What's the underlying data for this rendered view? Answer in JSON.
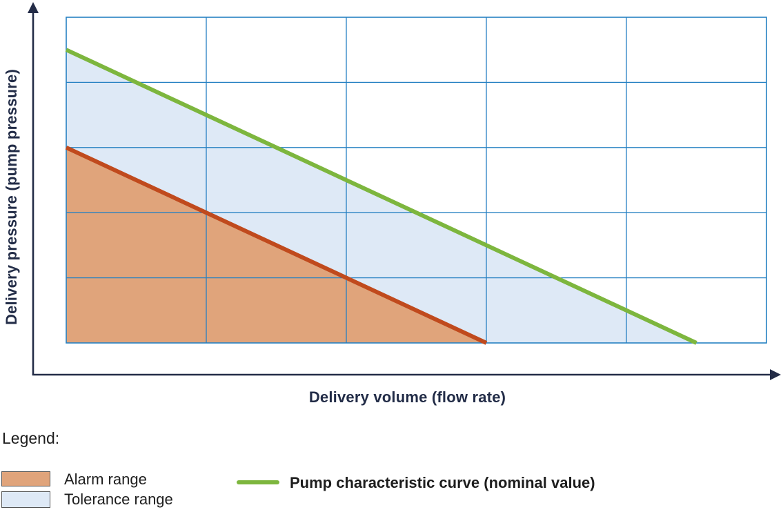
{
  "chart": {
    "xlabel": "Delivery volume (flow rate)",
    "ylabel": "Delivery pressure (pump pressure)"
  },
  "legend": {
    "title": "Legend:",
    "items": [
      {
        "label": "Alarm range",
        "swatch": "area",
        "color": "#e0a47b"
      },
      {
        "label": "Tolerance range",
        "swatch": "area",
        "color": "#dee9f6"
      },
      {
        "label": "Pump characteristic curve (nominal value)",
        "swatch": "line",
        "color": "#7db63e"
      }
    ]
  },
  "chart_data": {
    "type": "line",
    "title": "",
    "xlabel": "Delivery volume (flow rate)",
    "ylabel": "Delivery pressure (pump pressure)",
    "xlim": [
      0,
      5
    ],
    "ylim": [
      0,
      5
    ],
    "grid": true,
    "grid_step": 1,
    "tick_labels": "none (qualitative axes)",
    "legend_position": "below",
    "series": [
      {
        "name": "Pump characteristic curve (nominal value)",
        "x": [
          0,
          4.5
        ],
        "y": [
          4.5,
          0
        ],
        "color": "#7db63e",
        "width": 6
      },
      {
        "name": "Alarm range boundary",
        "x": [
          0,
          3
        ],
        "y": [
          3,
          0
        ],
        "color": "#c04a1d",
        "width": 6
      }
    ],
    "regions": [
      {
        "name": "Tolerance range",
        "polygon": [
          [
            0,
            4.5
          ],
          [
            4.5,
            0
          ],
          [
            3,
            0
          ],
          [
            0,
            3
          ]
        ],
        "color": "#dee9f6"
      },
      {
        "name": "Alarm range",
        "polygon": [
          [
            0,
            3
          ],
          [
            3,
            0
          ],
          [
            0,
            0
          ]
        ],
        "color": "#e0a47b"
      }
    ],
    "colors": {
      "grid": "#2580c2",
      "axis": "#232c47",
      "background": "#ffffff"
    }
  }
}
